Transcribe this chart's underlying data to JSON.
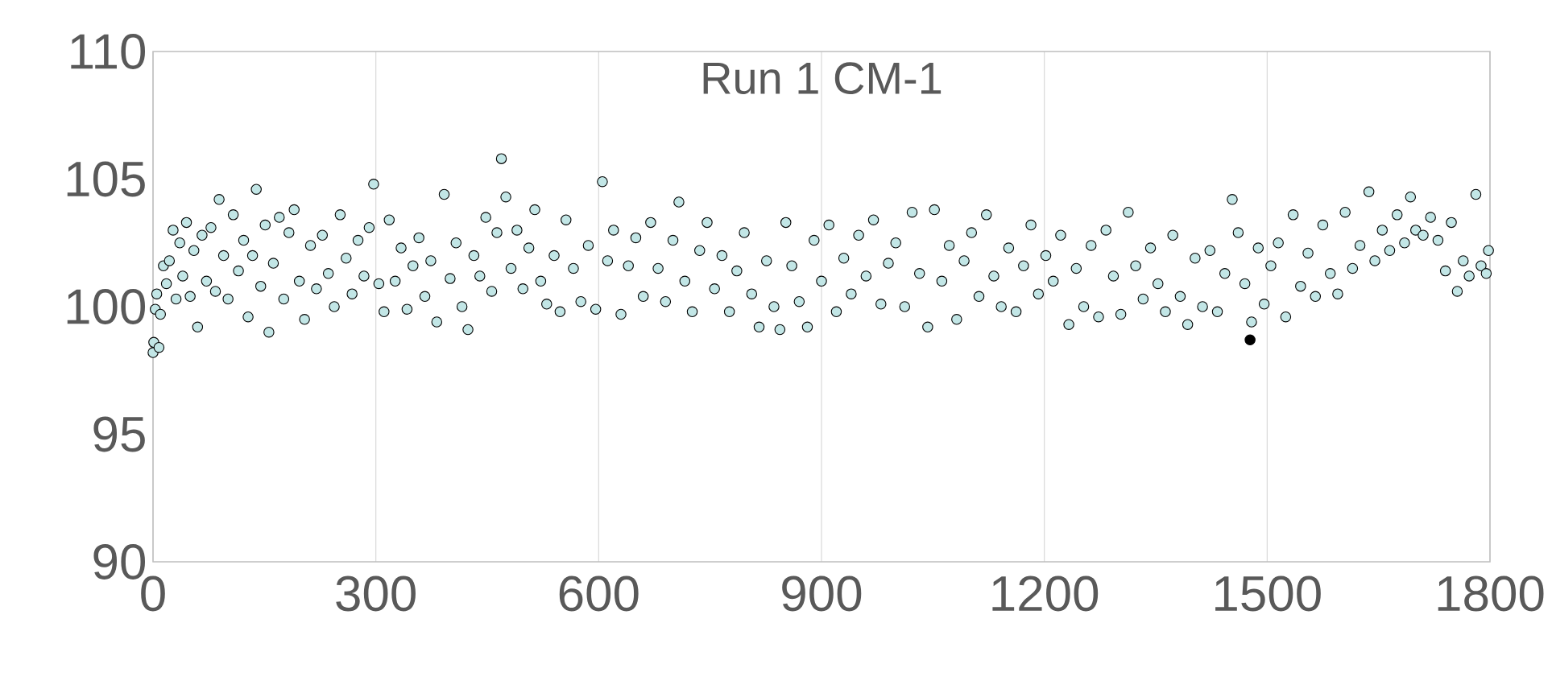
{
  "chart_data": {
    "type": "scatter",
    "title": "Run 1 CM-1",
    "xlim": [
      0,
      1800
    ],
    "xticks": [
      0,
      300,
      600,
      900,
      1200,
      1500,
      1800
    ],
    "ylim": [
      90,
      110
    ],
    "yticks": [
      90,
      95,
      100,
      105,
      110
    ],
    "grid": "x",
    "marker": "circle",
    "series": [
      {
        "color": "#c2e6e6",
        "x": [
          0,
          1,
          8,
          3,
          5,
          10,
          14,
          18,
          22,
          27,
          31,
          36,
          40,
          45,
          50,
          55,
          60,
          66,
          72,
          78,
          84,
          89,
          95,
          101,
          108,
          115,
          122,
          128,
          134,
          139,
          145,
          151,
          156,
          162,
          170,
          176,
          183,
          190,
          197,
          204,
          212,
          220,
          228,
          236,
          244,
          252,
          260,
          268,
          276,
          284,
          291,
          297,
          304,
          311,
          318,
          326,
          334,
          342,
          350,
          358,
          366,
          374,
          382,
          392,
          400,
          408,
          416,
          424,
          432,
          440,
          448,
          456,
          463,
          469,
          475,
          482,
          490,
          498,
          506,
          514,
          522,
          530,
          540,
          548,
          556,
          566,
          576,
          586,
          596,
          605,
          612,
          620,
          630,
          640,
          650,
          660,
          670,
          680,
          690,
          700,
          708,
          716,
          726,
          736,
          746,
          756,
          766,
          776,
          786,
          796,
          806,
          816,
          826,
          836,
          844,
          852,
          860,
          870,
          881,
          890,
          900,
          910,
          920,
          930,
          940,
          950,
          960,
          970,
          980,
          990,
          1000,
          1012,
          1022,
          1032,
          1043,
          1052,
          1062,
          1072,
          1082,
          1092,
          1102,
          1112,
          1122,
          1132,
          1142,
          1152,
          1162,
          1172,
          1182,
          1192,
          1202,
          1212,
          1222,
          1233,
          1243,
          1253,
          1263,
          1273,
          1283,
          1293,
          1303,
          1313,
          1323,
          1333,
          1343,
          1353,
          1363,
          1373,
          1383,
          1393,
          1403,
          1413,
          1423,
          1433,
          1443,
          1453,
          1461,
          1470,
          1479,
          1488,
          1496,
          1505,
          1515,
          1525,
          1535,
          1545,
          1555,
          1565,
          1575,
          1585,
          1595,
          1605,
          1615,
          1625,
          1637,
          1645,
          1655,
          1665,
          1675,
          1685,
          1693,
          1700,
          1710,
          1720,
          1730,
          1740,
          1748,
          1756,
          1764,
          1772,
          1781,
          1788,
          1795,
          1798
        ],
        "values": [
          98.2,
          98.6,
          98.4,
          99.9,
          100.5,
          99.7,
          101.6,
          100.9,
          101.8,
          103.0,
          100.3,
          102.5,
          101.2,
          103.3,
          100.4,
          102.2,
          99.2,
          102.8,
          101.0,
          103.1,
          100.6,
          104.2,
          102.0,
          100.3,
          103.6,
          101.4,
          102.6,
          99.6,
          102.0,
          104.6,
          100.8,
          103.2,
          99.0,
          101.7,
          103.5,
          100.3,
          102.9,
          103.8,
          101.0,
          99.5,
          102.4,
          100.7,
          102.8,
          101.3,
          100.0,
          103.6,
          101.9,
          100.5,
          102.6,
          101.2,
          103.1,
          104.8,
          100.9,
          99.8,
          103.4,
          101.0,
          102.3,
          99.9,
          101.6,
          102.7,
          100.4,
          101.8,
          99.4,
          104.4,
          101.1,
          102.5,
          100.0,
          99.1,
          102.0,
          101.2,
          103.5,
          100.6,
          102.9,
          105.8,
          104.3,
          101.5,
          103.0,
          100.7,
          102.3,
          103.8,
          101.0,
          100.1,
          102.0,
          99.8,
          103.4,
          101.5,
          100.2,
          102.4,
          99.9,
          104.9,
          101.8,
          103.0,
          99.7,
          101.6,
          102.7,
          100.4,
          103.3,
          101.5,
          100.2,
          102.6,
          104.1,
          101.0,
          99.8,
          102.2,
          103.3,
          100.7,
          102.0,
          99.8,
          101.4,
          102.9,
          100.5,
          99.2,
          101.8,
          100.0,
          99.1,
          103.3,
          101.6,
          100.2,
          99.2,
          102.6,
          101.0,
          103.2,
          99.8,
          101.9,
          100.5,
          102.8,
          101.2,
          103.4,
          100.1,
          101.7,
          102.5,
          100.0,
          103.7,
          101.3,
          99.2,
          103.8,
          101.0,
          102.4,
          99.5,
          101.8,
          102.9,
          100.4,
          103.6,
          101.2,
          100.0,
          102.3,
          99.8,
          101.6,
          103.2,
          100.5,
          102.0,
          101.0,
          102.8,
          99.3,
          101.5,
          100.0,
          102.4,
          99.6,
          103.0,
          101.2,
          99.7,
          103.7,
          101.6,
          100.3,
          102.3,
          100.9,
          99.8,
          102.8,
          100.4,
          99.3,
          101.9,
          100.0,
          102.2,
          99.8,
          101.3,
          104.2,
          102.9,
          100.9,
          99.4,
          102.3,
          100.1,
          101.6,
          102.5,
          99.6,
          103.6,
          100.8,
          102.1,
          100.4,
          103.2,
          101.3,
          100.5,
          103.7,
          101.5,
          102.4,
          104.5,
          101.8,
          103.0,
          102.2,
          103.6,
          102.5,
          104.3,
          103.0,
          102.8,
          103.5,
          102.6,
          101.4,
          103.3,
          100.6,
          101.8,
          101.2,
          104.4,
          101.6,
          101.3,
          102.2
        ]
      },
      {
        "color": "#000000",
        "x": [
          1477
        ],
        "values": [
          98.7
        ]
      }
    ]
  }
}
